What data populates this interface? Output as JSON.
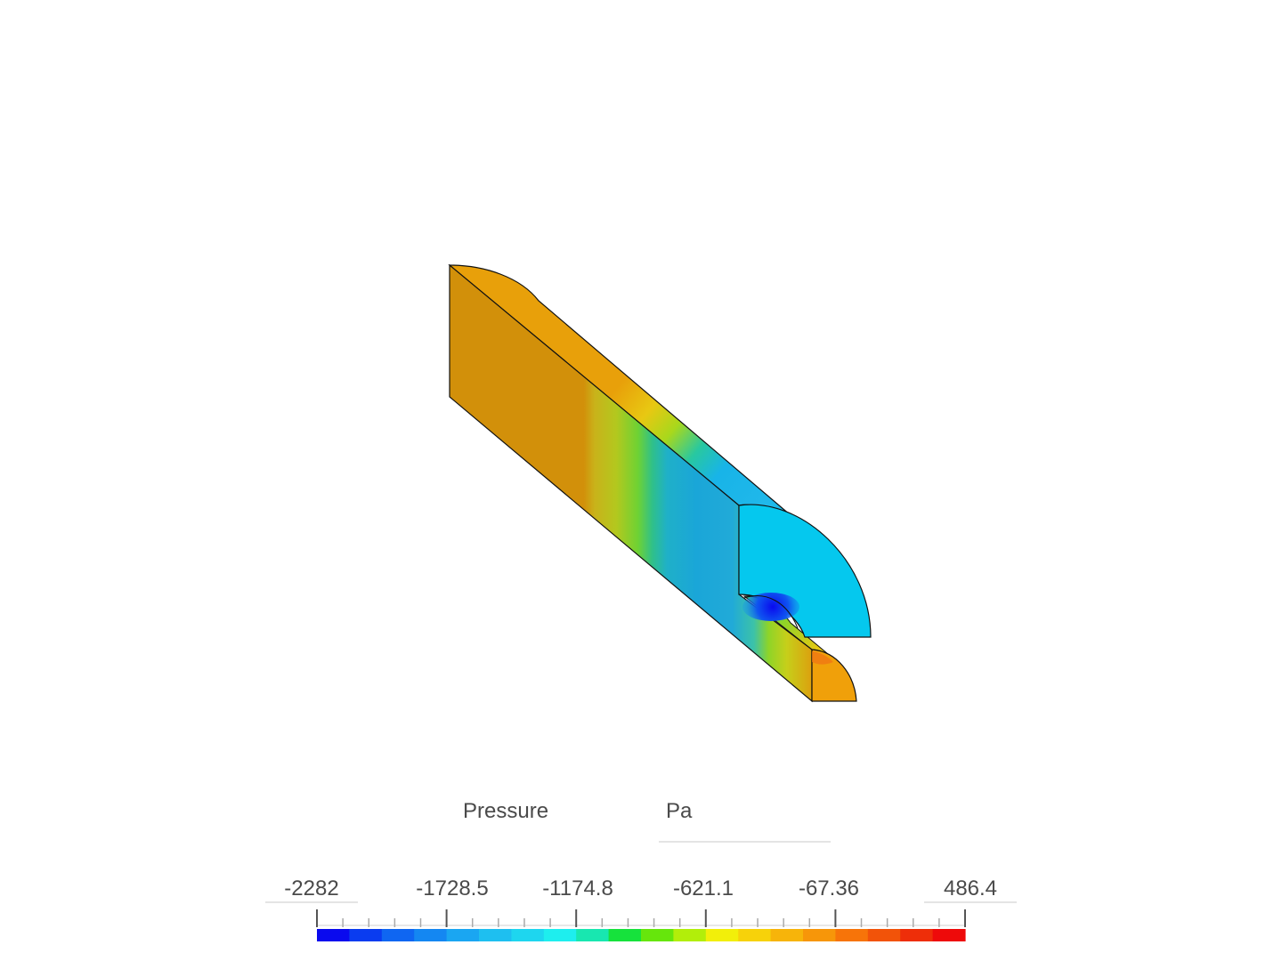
{
  "legend": {
    "quantity": "Pressure",
    "unit": "Pa",
    "ticks": [
      "-2282",
      "-1728.5",
      "-1174.8",
      "-621.1",
      "-67.36",
      "486.4"
    ],
    "range": [
      -2282,
      486.4
    ],
    "colors": [
      "#0a0aee",
      "#0a3cf0",
      "#0f66f2",
      "#1487f2",
      "#1aa6f2",
      "#1ebff0",
      "#1ed6ef",
      "#1eeeee",
      "#18e7b0",
      "#16e23c",
      "#66e60c",
      "#b2ee0a",
      "#f2ef0a",
      "#f7d20a",
      "#f7b40a",
      "#f79609",
      "#f77409",
      "#f25309",
      "#ee2e09",
      "#ee0a0a"
    ]
  },
  "model": {
    "field_colors": {
      "inlet": "#e8a00a",
      "inlet_side": "#d2900a",
      "transition": "#8ed428",
      "low": "#18b2ea",
      "outlet_face": "#05c8ee",
      "min": "#0a1ad8",
      "outlet_tip": "#f0a00a"
    }
  }
}
